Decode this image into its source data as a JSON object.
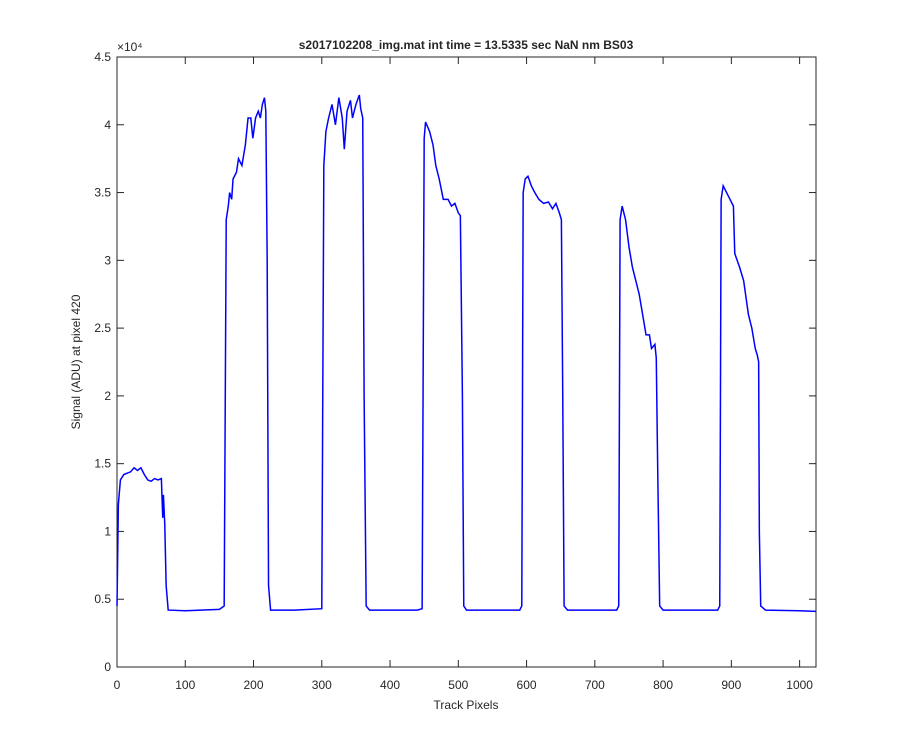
{
  "chart_data": {
    "type": "line",
    "title": "s2017102208_img.mat int time = 13.5335 sec  NaN nm BS03",
    "x_label": "Track Pixels",
    "y_label": "Signal (ADU) at pixel 420",
    "y_exponent_label": "×10⁴",
    "x": [
      0,
      2,
      5,
      10,
      20,
      25,
      30,
      35,
      40,
      45,
      50,
      55,
      60,
      65,
      67,
      68,
      70,
      72,
      75,
      100,
      150,
      157,
      160,
      163,
      165,
      168,
      170,
      175,
      178,
      183,
      188,
      192,
      196,
      199,
      203,
      207,
      210,
      213,
      216,
      218,
      220,
      222,
      225,
      260,
      300,
      303,
      306,
      310,
      315,
      320,
      325,
      330,
      333,
      337,
      342,
      345,
      350,
      355,
      357,
      360,
      362,
      365,
      370,
      440,
      447,
      450,
      452,
      458,
      463,
      467,
      472,
      478,
      485,
      490,
      495,
      500,
      503,
      506,
      508,
      512,
      590,
      593,
      595,
      598,
      602,
      607,
      612,
      618,
      625,
      632,
      638,
      643,
      648,
      651,
      653,
      655,
      660,
      732,
      735,
      737,
      740,
      745,
      750,
      755,
      760,
      765,
      770,
      775,
      780,
      783,
      788,
      790,
      792,
      795,
      800,
      880,
      883,
      885,
      888,
      893,
      898,
      903,
      905,
      912,
      918,
      925,
      930,
      935,
      938,
      940,
      941,
      943,
      950,
      1000,
      1024
    ],
    "series": [
      {
        "color": "#0000ff",
        "values": [
          0.45,
          1.2,
          1.38,
          1.42,
          1.44,
          1.47,
          1.45,
          1.47,
          1.42,
          1.38,
          1.37,
          1.39,
          1.38,
          1.39,
          1.1,
          1.27,
          1.05,
          0.6,
          0.42,
          0.415,
          0.425,
          0.45,
          3.3,
          3.4,
          3.5,
          3.45,
          3.6,
          3.65,
          3.75,
          3.7,
          3.85,
          4.05,
          4.05,
          3.9,
          4.05,
          4.1,
          4.05,
          4.15,
          4.2,
          4.1,
          3.0,
          0.6,
          0.42,
          0.42,
          0.43,
          3.7,
          3.95,
          4.05,
          4.15,
          4.0,
          4.2,
          4.05,
          3.82,
          4.1,
          4.18,
          4.05,
          4.15,
          4.22,
          4.12,
          4.05,
          2.0,
          0.45,
          0.42,
          0.42,
          0.43,
          3.9,
          4.02,
          3.95,
          3.85,
          3.7,
          3.6,
          3.45,
          3.45,
          3.4,
          3.42,
          3.35,
          3.33,
          2.0,
          0.45,
          0.42,
          0.42,
          0.45,
          3.5,
          3.6,
          3.62,
          3.55,
          3.5,
          3.45,
          3.42,
          3.43,
          3.38,
          3.42,
          3.35,
          3.3,
          2.0,
          0.45,
          0.42,
          0.42,
          0.45,
          3.3,
          3.4,
          3.3,
          3.1,
          2.95,
          2.85,
          2.75,
          2.6,
          2.45,
          2.45,
          2.35,
          2.38,
          2.28,
          1.5,
          0.45,
          0.42,
          0.42,
          0.45,
          3.45,
          3.55,
          3.5,
          3.45,
          3.4,
          3.05,
          2.95,
          2.85,
          2.6,
          2.5,
          2.35,
          2.3,
          2.25,
          1.0,
          0.45,
          0.42,
          0.415,
          0.41
        ]
      }
    ],
    "xlim": [
      0,
      1024
    ],
    "ylim": [
      0,
      4.5
    ],
    "xticks": [
      0,
      100,
      200,
      300,
      400,
      500,
      600,
      700,
      800,
      900,
      1000
    ],
    "yticks": [
      0,
      0.5,
      1,
      1.5,
      2,
      2.5,
      3,
      3.5,
      4,
      4.5
    ]
  }
}
